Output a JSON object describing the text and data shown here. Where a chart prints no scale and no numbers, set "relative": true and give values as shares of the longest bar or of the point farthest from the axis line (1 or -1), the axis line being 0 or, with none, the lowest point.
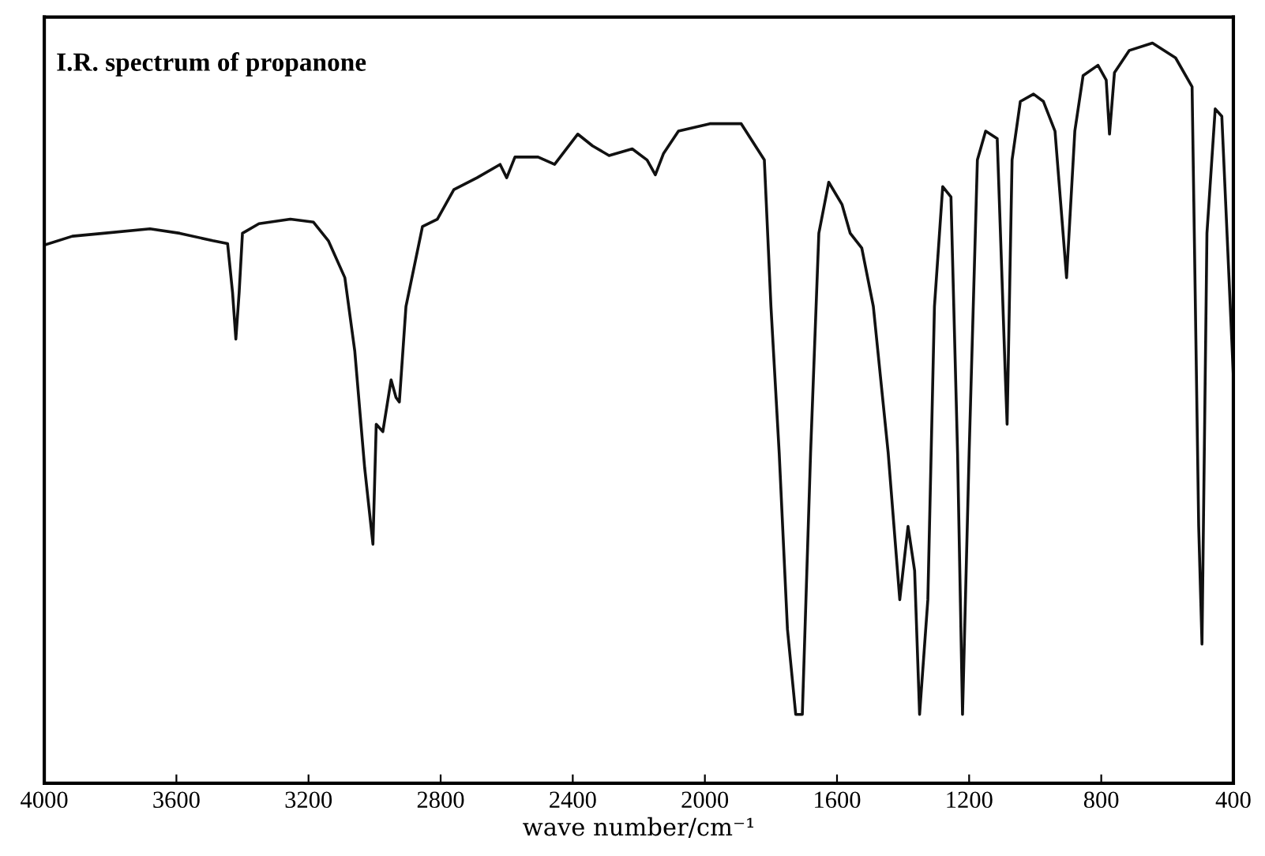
{
  "chart_data": {
    "type": "line",
    "title": "I.R. spectrum of propanone",
    "xlabel": "wave number/cm⁻¹",
    "relative": true,
    "tick_labels": "x",
    "grid": false,
    "legend": false,
    "marker": "none",
    "line_style": "solid",
    "xlim": [
      4000,
      400
    ],
    "xticks": [
      4000,
      3600,
      3200,
      2800,
      2400,
      2000,
      1600,
      1200,
      800,
      400
    ],
    "series": [
      {
        "color": "#111111",
        "x": [
          4000,
          3915,
          3820,
          3680,
          3590,
          3490,
          3445,
          3430,
          3420,
          3410,
          3400,
          3350,
          3255,
          3185,
          3140,
          3090,
          3060,
          3030,
          3005,
          2995,
          2975,
          2950,
          2935,
          2925,
          2905,
          2855,
          2810,
          2760,
          2690,
          2620,
          2600,
          2575,
          2505,
          2455,
          2385,
          2340,
          2290,
          2220,
          2175,
          2150,
          2125,
          2080,
          1985,
          1890,
          1820,
          1800,
          1775,
          1750,
          1725,
          1705,
          1680,
          1655,
          1625,
          1585,
          1560,
          1525,
          1490,
          1445,
          1410,
          1385,
          1365,
          1350,
          1325,
          1305,
          1280,
          1255,
          1235,
          1220,
          1200,
          1175,
          1150,
          1115,
          1090,
          1085,
          1070,
          1045,
          1005,
          975,
          940,
          905,
          880,
          855,
          810,
          785,
          775,
          760,
          715,
          645,
          575,
          525,
          505,
          495,
          480,
          455,
          435,
          400
        ],
        "values": [
          0.727,
          0.739,
          0.743,
          0.749,
          0.743,
          0.733,
          0.729,
          0.663,
          0.6,
          0.663,
          0.743,
          0.756,
          0.762,
          0.758,
          0.733,
          0.683,
          0.584,
          0.426,
          0.323,
          0.485,
          0.475,
          0.545,
          0.521,
          0.515,
          0.644,
          0.752,
          0.762,
          0.802,
          0.818,
          0.836,
          0.818,
          0.846,
          0.846,
          0.836,
          0.877,
          0.861,
          0.848,
          0.857,
          0.842,
          0.822,
          0.851,
          0.881,
          0.891,
          0.891,
          0.842,
          0.644,
          0.446,
          0.208,
          0.093,
          0.093,
          0.446,
          0.743,
          0.812,
          0.782,
          0.743,
          0.723,
          0.644,
          0.446,
          0.248,
          0.347,
          0.287,
          0.093,
          0.248,
          0.644,
          0.806,
          0.792,
          0.446,
          0.093,
          0.446,
          0.842,
          0.881,
          0.871,
          0.545,
          0.485,
          0.842,
          0.921,
          0.931,
          0.921,
          0.881,
          0.683,
          0.881,
          0.956,
          0.97,
          0.95,
          0.877,
          0.96,
          0.99,
          1,
          0.98,
          0.941,
          0.347,
          0.188,
          0.743,
          0.911,
          0.901,
          0.55
        ]
      }
    ]
  }
}
